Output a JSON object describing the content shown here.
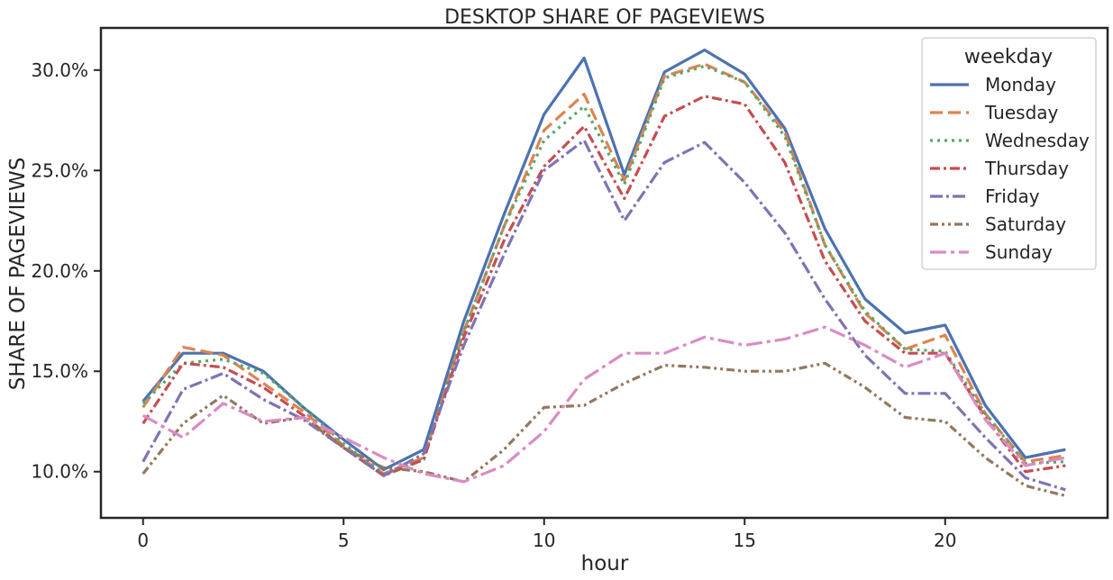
{
  "chart_data": {
    "type": "line",
    "title": "DESKTOP SHARE OF PAGEVIEWS",
    "xlabel": "hour",
    "ylabel": "SHARE OF PAGEVIEWS",
    "xlim": [
      -1.05,
      24.05
    ],
    "ylim": [
      7.7,
      32.1
    ],
    "xticks": [
      0,
      5,
      10,
      15,
      20
    ],
    "xtick_labels": [
      "0",
      "5",
      "10",
      "15",
      "20"
    ],
    "yticks": [
      10,
      15,
      20,
      25,
      30
    ],
    "ytick_labels": [
      "10.0%",
      "15.0%",
      "20.0%",
      "25.0%",
      "30.0%"
    ],
    "grid": false,
    "legend": {
      "title": "weekday",
      "position": "top-right"
    },
    "x": [
      0,
      1,
      2,
      3,
      4,
      5,
      6,
      7,
      8,
      9,
      10,
      11,
      12,
      13,
      14,
      15,
      16,
      17,
      18,
      19,
      20,
      21,
      22,
      23
    ],
    "series": [
      {
        "name": "Monday",
        "color": "#4c72b0",
        "dash": "solid",
        "values": [
          13.5,
          15.9,
          15.9,
          15.0,
          13.2,
          11.6,
          10.1,
          11.1,
          17.5,
          22.8,
          27.8,
          30.6,
          24.8,
          29.9,
          31.0,
          29.8,
          27.1,
          22.1,
          18.6,
          16.9,
          17.3,
          13.3,
          10.7,
          11.1
        ]
      },
      {
        "name": "Tuesday",
        "color": "#dd8452",
        "dash": "dashed",
        "values": [
          13.2,
          16.2,
          15.8,
          14.4,
          13.0,
          11.3,
          9.9,
          10.7,
          17.0,
          22.2,
          27.0,
          28.8,
          24.5,
          29.7,
          30.3,
          29.4,
          26.9,
          21.3,
          17.9,
          16.1,
          16.8,
          12.9,
          10.5,
          10.8
        ]
      },
      {
        "name": "Wednesday",
        "color": "#55a868",
        "dash": "dotted",
        "values": [
          13.4,
          15.4,
          15.6,
          14.9,
          13.2,
          11.4,
          9.9,
          10.6,
          17.0,
          22.2,
          26.5,
          28.2,
          24.3,
          29.6,
          30.2,
          29.4,
          26.7,
          21.3,
          18.0,
          16.1,
          16.0,
          12.9,
          10.4,
          10.5
        ]
      },
      {
        "name": "Thursday",
        "color": "#c44e52",
        "dash": "dashdot",
        "values": [
          12.4,
          15.4,
          15.2,
          14.2,
          12.8,
          11.2,
          9.8,
          10.6,
          16.7,
          21.5,
          25.2,
          27.2,
          23.6,
          27.7,
          28.7,
          28.3,
          25.4,
          20.5,
          17.5,
          15.9,
          15.9,
          12.7,
          10.0,
          10.3
        ]
      },
      {
        "name": "Friday",
        "color": "#8172b3",
        "dash": "dashdot2",
        "values": [
          10.5,
          14.1,
          14.9,
          13.6,
          12.6,
          11.2,
          9.8,
          10.9,
          16.3,
          20.8,
          25.0,
          26.5,
          22.5,
          25.4,
          26.4,
          24.4,
          21.9,
          18.6,
          15.8,
          13.9,
          13.9,
          11.7,
          9.7,
          9.1
        ]
      },
      {
        "name": "Saturday",
        "color": "#937860",
        "dash": "dashdotdot",
        "values": [
          9.9,
          12.4,
          13.8,
          12.4,
          12.7,
          11.2,
          10.2,
          10.0,
          9.5,
          11.1,
          13.2,
          13.3,
          14.4,
          15.3,
          15.2,
          15.0,
          15.0,
          15.4,
          14.2,
          12.7,
          12.5,
          10.7,
          9.3,
          8.8
        ]
      },
      {
        "name": "Sunday",
        "color": "#da8bc3",
        "dash": "longdashdot",
        "values": [
          12.8,
          11.7,
          13.4,
          12.5,
          12.7,
          11.7,
          10.7,
          9.9,
          9.5,
          10.3,
          12.0,
          14.6,
          15.9,
          15.9,
          16.7,
          16.3,
          16.6,
          17.2,
          16.3,
          15.2,
          15.9,
          12.6,
          10.3,
          10.7
        ]
      }
    ]
  }
}
